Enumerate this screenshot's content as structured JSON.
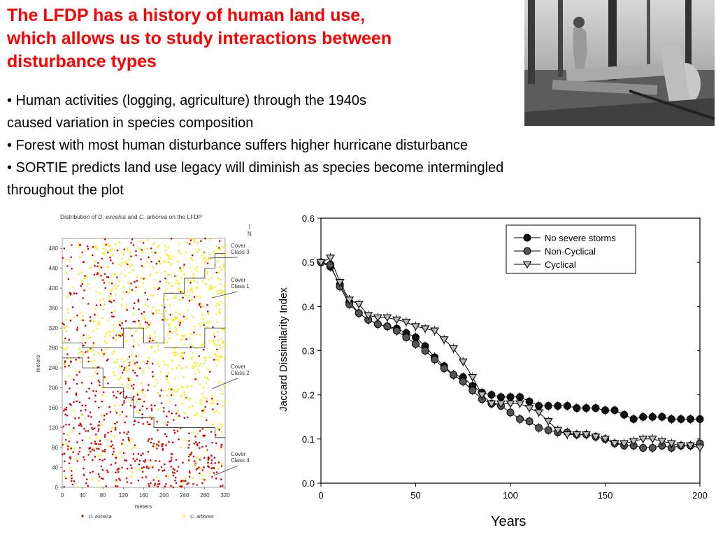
{
  "title_lines": [
    "The LFDP has a history of human land use,",
    "which allows us to study interactions between",
    "disturbance types"
  ],
  "bullets": [
    "•  Human activities (logging, agriculture)  through the 1940s",
    "caused variation in species composition",
    "•  Forest with most human disturbance suffers higher hurricane disturbance",
    "•  SORTIE predicts land use legacy will diminish as species become intermingled",
    "throughout the plot"
  ],
  "photo": {
    "icon": "logging-photo"
  },
  "map": {
    "title_parts": [
      "Distribution of ",
      "D. excelsa",
      " and ",
      "C. arborea",
      " on the LFDP"
    ],
    "north": "N",
    "ylabel": "meters",
    "xlabel": "meters",
    "yticks": [
      "0",
      "40",
      "80",
      "120",
      "160",
      "200",
      "240",
      "280",
      "320",
      "360",
      "400",
      "440",
      "480"
    ],
    "xticks": [
      "0",
      "40",
      "80",
      "120",
      "160",
      "200",
      "240",
      "280",
      "320"
    ],
    "cover_labels": [
      {
        "line1": "Cover",
        "line2": "Class 3"
      },
      {
        "line1": "Cover",
        "line2": "Class 1"
      },
      {
        "line1": "Cover",
        "line2": "Class 2"
      },
      {
        "line1": "Cover",
        "line2": "Class 4"
      }
    ],
    "legend": [
      {
        "label": "D. excelsa",
        "color": "#dd0000"
      },
      {
        "label": "C. arborea",
        "color": "#ffee00"
      }
    ]
  },
  "chart_data": {
    "type": "line",
    "title": "",
    "xlabel": "Years",
    "ylabel": "Jaccard Dissimilarity Index",
    "xlim": [
      0,
      200
    ],
    "ylim": [
      0.0,
      0.6
    ],
    "xticks": [
      "0",
      "50",
      "100",
      "150",
      "200"
    ],
    "yticks": [
      "0.0",
      "0.1",
      "0.2",
      "0.3",
      "0.4",
      "0.5",
      "0.6"
    ],
    "legend_position": "top-right",
    "x": [
      0,
      5,
      10,
      15,
      20,
      25,
      30,
      35,
      40,
      45,
      50,
      55,
      60,
      65,
      70,
      75,
      80,
      85,
      90,
      95,
      100,
      105,
      110,
      115,
      120,
      125,
      130,
      135,
      140,
      145,
      150,
      155,
      160,
      165,
      170,
      175,
      180,
      185,
      190,
      195,
      200
    ],
    "series": [
      {
        "name": "No severe storms",
        "marker": "filled-circle",
        "values": [
          0.5,
          0.49,
          0.45,
          0.41,
          0.385,
          0.37,
          0.36,
          0.355,
          0.35,
          0.34,
          0.33,
          0.31,
          0.285,
          0.265,
          0.245,
          0.24,
          0.22,
          0.205,
          0.2,
          0.195,
          0.195,
          0.195,
          0.185,
          0.175,
          0.175,
          0.175,
          0.175,
          0.17,
          0.17,
          0.17,
          0.165,
          0.165,
          0.155,
          0.145,
          0.15,
          0.15,
          0.15,
          0.145,
          0.145,
          0.145,
          0.145
        ]
      },
      {
        "name": "Non-Cyclical",
        "marker": "shaded-circle",
        "values": [
          0.5,
          0.495,
          0.445,
          0.405,
          0.385,
          0.37,
          0.36,
          0.355,
          0.345,
          0.33,
          0.315,
          0.3,
          0.28,
          0.26,
          0.245,
          0.23,
          0.21,
          0.19,
          0.18,
          0.175,
          0.16,
          0.145,
          0.14,
          0.125,
          0.12,
          0.115,
          0.115,
          0.11,
          0.11,
          0.105,
          0.1,
          0.09,
          0.085,
          0.085,
          0.08,
          0.08,
          0.085,
          0.08,
          0.085,
          0.085,
          0.09
        ]
      },
      {
        "name": "Cyclical",
        "marker": "open-triangle",
        "values": [
          0.5,
          0.51,
          0.455,
          0.415,
          0.405,
          0.38,
          0.375,
          0.375,
          0.37,
          0.365,
          0.355,
          0.35,
          0.345,
          0.325,
          0.305,
          0.275,
          0.24,
          0.2,
          0.18,
          0.18,
          0.18,
          0.18,
          0.17,
          0.16,
          0.14,
          0.12,
          0.11,
          0.11,
          0.11,
          0.105,
          0.1,
          0.09,
          0.09,
          0.095,
          0.1,
          0.1,
          0.095,
          0.09,
          0.085,
          0.085,
          0.08
        ]
      }
    ]
  }
}
